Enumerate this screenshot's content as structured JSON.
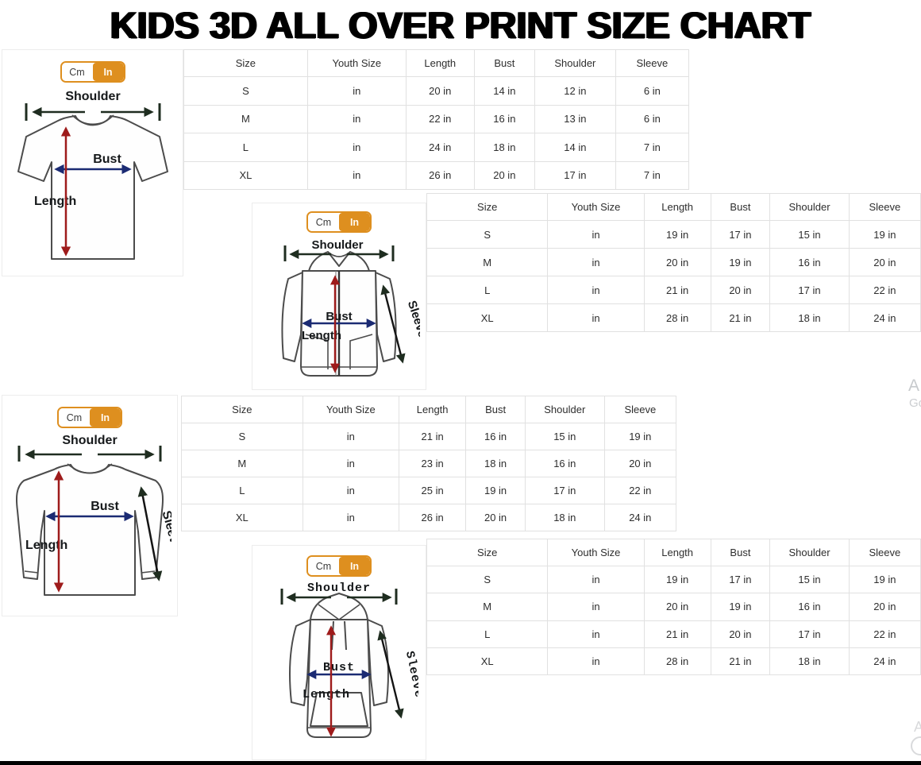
{
  "title": "KIDS 3D ALL OVER PRINT SIZE CHART",
  "unit_toggle": {
    "cm_label": "Cm",
    "in_label": "In",
    "active": "In"
  },
  "diagram_labels": {
    "shoulder": "Shoulder",
    "bust": "Bust",
    "length": "Length",
    "sleeve": "Sleeve"
  },
  "colors": {
    "accent_orange": "#DE8F1F",
    "arrow_red": "#9E1B1B",
    "arrow_navy": "#1B2B73",
    "arrow_dark": "#1F2D20",
    "table_border": "#E1E1E1",
    "title_black": "#000000"
  },
  "tables": {
    "headers": [
      "Size",
      "Youth Size",
      "Length",
      "Bust",
      "Shoulder",
      "Sleeve"
    ],
    "tshirt": {
      "garment_icon": "t-shirt-diagram",
      "rows": [
        [
          "S",
          "in",
          "20 in",
          "14 in",
          "12 in",
          "6 in"
        ],
        [
          "M",
          "in",
          "22 in",
          "16 in",
          "13 in",
          "6 in"
        ],
        [
          "L",
          "in",
          "24 in",
          "18 in",
          "14 in",
          "7 in"
        ],
        [
          "XL",
          "in",
          "26 in",
          "20 in",
          "17 in",
          "7 in"
        ]
      ]
    },
    "zip_hoodie": {
      "garment_icon": "zip-hoodie-diagram",
      "rows": [
        [
          "S",
          "in",
          "19 in",
          "17 in",
          "15 in",
          "19 in"
        ],
        [
          "M",
          "in",
          "20 in",
          "19 in",
          "16 in",
          "20 in"
        ],
        [
          "L",
          "in",
          "21 in",
          "20 in",
          "17 in",
          "22 in"
        ],
        [
          "XL",
          "in",
          "28 in",
          "21 in",
          "18 in",
          "24 in"
        ]
      ]
    },
    "long_sleeve": {
      "garment_icon": "long-sleeve-shirt-diagram",
      "rows": [
        [
          "S",
          "in",
          "21 in",
          "16 in",
          "15 in",
          "19 in"
        ],
        [
          "M",
          "in",
          "23 in",
          "18 in",
          "16 in",
          "20 in"
        ],
        [
          "L",
          "in",
          "25 in",
          "19 in",
          "17 in",
          "22 in"
        ],
        [
          "XL",
          "in",
          "26 in",
          "20 in",
          "18 in",
          "24 in"
        ]
      ]
    },
    "hoodie": {
      "garment_icon": "pullover-hoodie-diagram",
      "rows": [
        [
          "S",
          "in",
          "19 in",
          "17 in",
          "15 in",
          "19 in"
        ],
        [
          "M",
          "in",
          "20 in",
          "19 in",
          "16 in",
          "20 in"
        ],
        [
          "L",
          "in",
          "21 in",
          "20 in",
          "17 in",
          "22 in"
        ],
        [
          "XL",
          "in",
          "28 in",
          "21 in",
          "18 in",
          "24 in"
        ]
      ]
    }
  },
  "edge_fragments": {
    "mid_right_top": "A",
    "mid_right_bottom": "Go",
    "bottom_right": "A"
  }
}
